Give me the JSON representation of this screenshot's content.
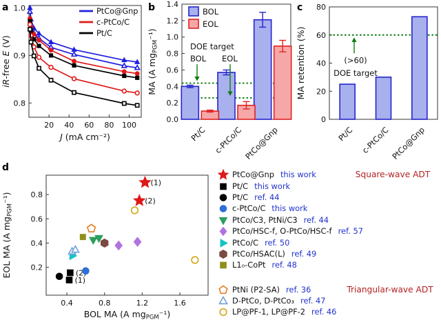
{
  "panels": {
    "a": {
      "label": "a"
    },
    "b": {
      "label": "b"
    },
    "c": {
      "label": "c"
    },
    "d": {
      "label": "d"
    }
  },
  "colors": {
    "blue_line": "#1f1fe0",
    "red_line": "#e01818",
    "black_line": "#000000",
    "bol_fill": "#a9b0ee",
    "bol_edge": "#2424cc",
    "eol_fill": "#f6a7a7",
    "eol_edge": "#e02222",
    "target_green": "#0a7c0a",
    "ref_blue": "#2233cc",
    "adt_title_red": "#b22222"
  },
  "chart_data": [
    {
      "id": "a",
      "type": "line",
      "xlabel": "*J* (mA cm⁻²)",
      "ylabel": "*iR*-free *E* (V)",
      "xlim": [
        0,
        112
      ],
      "ylim": [
        0.77,
        1.005
      ],
      "xticks": [
        20,
        40,
        60,
        80,
        100
      ],
      "xtick_labels": [
        "20",
        "40",
        "60",
        "80",
        "100"
      ],
      "yticks": [
        0.8,
        0.9,
        1.0
      ],
      "ytick_labels": [
        "0.8",
        "0.9",
        "1.0"
      ],
      "grid": false,
      "legend_position": "top-right",
      "legend": [
        {
          "label": "PtCo@Gnp",
          "color": "#1f1fe0"
        },
        {
          "label": "c-PtCo/C",
          "color": "#e01818"
        },
        {
          "label": "Pt/C",
          "color": "#000000"
        }
      ],
      "series": [
        {
          "name": "PtCo@Gnp BOL",
          "color": "#1f1fe0",
          "marker": "triangle",
          "filled": true,
          "x": [
            1,
            2,
            5,
            10,
            22,
            45,
            95,
            108
          ],
          "y": [
            1.0,
            0.976,
            0.957,
            0.946,
            0.928,
            0.912,
            0.89,
            0.886
          ]
        },
        {
          "name": "PtCo@Gnp EOL",
          "color": "#1f1fe0",
          "marker": "triangle",
          "filled": false,
          "x": [
            1,
            2,
            5,
            10,
            22,
            45,
            95,
            108
          ],
          "y": [
            0.992,
            0.966,
            0.946,
            0.936,
            0.917,
            0.902,
            0.878,
            0.874
          ]
        },
        {
          "name": "c-PtCo/C BOL",
          "color": "#e01818",
          "marker": "circle",
          "filled": true,
          "x": [
            1,
            2,
            5,
            10,
            22,
            45,
            95,
            108
          ],
          "y": [
            0.978,
            0.96,
            0.945,
            0.932,
            0.911,
            0.888,
            0.866,
            0.862
          ]
        },
        {
          "name": "Pt/C BOL",
          "color": "#000000",
          "marker": "square",
          "filled": true,
          "x": [
            1,
            2,
            5,
            10,
            22,
            45,
            95,
            108
          ],
          "y": [
            0.972,
            0.952,
            0.934,
            0.92,
            0.9,
            0.879,
            0.857,
            0.853
          ]
        },
        {
          "name": "c-PtCo/C EOL",
          "color": "#e01818",
          "marker": "circle",
          "filled": false,
          "x": [
            1,
            2,
            5,
            10,
            22,
            45,
            95,
            108
          ],
          "y": [
            0.965,
            0.942,
            0.918,
            0.896,
            0.875,
            0.851,
            0.825,
            0.821
          ]
        },
        {
          "name": "Pt/C EOL",
          "color": "#000000",
          "marker": "square",
          "filled": false,
          "x": [
            1,
            2,
            5,
            10,
            22,
            45,
            95,
            108
          ],
          "y": [
            0.955,
            0.928,
            0.899,
            0.873,
            0.848,
            0.822,
            0.799,
            0.795
          ]
        }
      ]
    },
    {
      "id": "b",
      "type": "bar",
      "ylabel": "MA (A mg~PGM~⁻¹)",
      "categories": [
        "Pt/C",
        "c-PtCo/C",
        "PtCo@Gnp"
      ],
      "ylim": [
        0,
        1.4
      ],
      "yticks": [
        0,
        0.2,
        0.4,
        0.6,
        0.8,
        1.0,
        1.2,
        1.4
      ],
      "ytick_labels": [
        "0.0",
        "0.2",
        "0.4",
        "0.6",
        "0.8",
        "1.0",
        "1.2",
        "1.4"
      ],
      "grid": false,
      "legend_position": "top-left",
      "series": [
        {
          "name": "BOL",
          "fill": "#a9b0ee",
          "edge": "#2424cc",
          "values": [
            0.4,
            0.57,
            1.21
          ],
          "errors": [
            0.015,
            0.03,
            0.09
          ]
        },
        {
          "name": "EOL",
          "fill": "#f6a7a7",
          "edge": "#e02222",
          "values": [
            0.1,
            0.17,
            0.89
          ],
          "errors": [
            0.012,
            0.045,
            0.07
          ]
        }
      ],
      "targets": {
        "color": "#0a7c0a",
        "label": "DOE target",
        "items": [
          {
            "name": "BOL",
            "value": 0.44
          },
          {
            "name": "EOL",
            "value": 0.26
          }
        ]
      }
    },
    {
      "id": "c",
      "type": "bar",
      "ylabel": "MA retention (%)",
      "categories": [
        "Pt/C",
        "c-PtCo/C",
        "PtCo@Gnp"
      ],
      "ylim": [
        0,
        80
      ],
      "yticks": [
        0,
        20,
        40,
        60,
        80
      ],
      "ytick_labels": [
        "0",
        "20",
        "40",
        "60",
        "80"
      ],
      "grid": false,
      "series": [
        {
          "name": "MA retention",
          "fill": "#a9b0ee",
          "edge": "#2424cc",
          "values": [
            25,
            30,
            73
          ]
        }
      ],
      "target": {
        "color": "#0a7c0a",
        "value": 60,
        "note": "(>60)",
        "label": "DOE target"
      }
    },
    {
      "id": "d",
      "type": "scatter",
      "xlabel": "BOL MA (A mg~PGM~⁻¹)",
      "ylabel": "EOL MA (A mg~PGM~⁻¹)",
      "xlim": [
        0.18,
        1.9
      ],
      "ylim": [
        -0.03,
        0.96
      ],
      "xticks": [
        0.4,
        0.8,
        1.2,
        1.6
      ],
      "xtick_labels": [
        "0.4",
        "0.8",
        "1.2",
        "1.6"
      ],
      "yticks": [
        0.2,
        0.4,
        0.6,
        0.8
      ],
      "ytick_labels": [
        "0.2",
        "0.4",
        "0.6",
        "0.8"
      ],
      "grid": false,
      "groups": [
        {
          "name": "PtCo@Gnp",
          "ref": "this work",
          "marker": "star",
          "color": "#e01818",
          "filled": true,
          "size": 8.5,
          "points": [
            {
              "x": 1.23,
              "y": 0.9,
              "label": "(1)"
            },
            {
              "x": 1.17,
              "y": 0.75,
              "label": "(2)"
            }
          ]
        },
        {
          "name": "Pt/C",
          "ref": "this work",
          "marker": "square",
          "color": "#000000",
          "filled": true,
          "size": 6,
          "points": [
            {
              "x": 0.425,
              "y": 0.095,
              "label": "(1)"
            },
            {
              "x": 0.435,
              "y": 0.155,
              "label": "(2)"
            }
          ]
        },
        {
          "name": "Pt/C",
          "ref": "ref. 44",
          "marker": "circle",
          "color": "#000000",
          "filled": true,
          "size": 6,
          "points": [
            {
              "x": 0.32,
              "y": 0.125
            }
          ]
        },
        {
          "name": "c-PtCo/C",
          "ref": "this work",
          "marker": "circle",
          "color": "#2e6fd8",
          "filled": true,
          "size": 6,
          "points": [
            {
              "x": 0.6,
              "y": 0.17
            }
          ]
        },
        {
          "name": "PtCo/C3, PtNi/C3",
          "ref": "ref. 44",
          "marker": "triangle-down",
          "color": "#2e9e5e",
          "filled": true,
          "size": 6,
          "points": [
            {
              "x": 0.68,
              "y": 0.425
            },
            {
              "x": 0.74,
              "y": 0.44
            }
          ]
        },
        {
          "name": "PtCo/HSC-f, O-PtCo/HSC-f",
          "ref": "ref. 57",
          "marker": "diamond",
          "color": "#b173e0",
          "filled": true,
          "size": 6.5,
          "points": [
            {
              "x": 0.95,
              "y": 0.38
            },
            {
              "x": 1.15,
              "y": 0.41
            }
          ]
        },
        {
          "name": "PtCo/C",
          "ref": "ref. 50",
          "marker": "triangle-right",
          "color": "#17c3c3",
          "filled": true,
          "size": 6,
          "points": [
            {
              "x": 0.46,
              "y": 0.295
            }
          ]
        },
        {
          "name": "PtCo/HSAC(L)",
          "ref": "ref. 49",
          "marker": "hexagon",
          "color": "#7b4a42",
          "filled": true,
          "size": 6,
          "points": [
            {
              "x": 0.8,
              "y": 0.4
            }
          ]
        },
        {
          "name": "L1₀-CoPt",
          "ref": "ref. 48",
          "marker": "square",
          "color": "#8f8f1c",
          "filled": true,
          "size": 5.5,
          "points": [
            {
              "x": 0.57,
              "y": 0.45
            }
          ]
        },
        {
          "name": "PtNi (P2-SA)",
          "ref": "ref. 36",
          "marker": "pentagon",
          "color": "#e87a1e",
          "filled": false,
          "size": 6,
          "points": [
            {
              "x": 0.66,
              "y": 0.52
            }
          ]
        },
        {
          "name": "D-PtCo, D-PtCo₃",
          "ref": "ref. 47",
          "marker": "triangle",
          "color": "#70a0d8",
          "filled": false,
          "size": 5.5,
          "points": [
            {
              "x": 0.455,
              "y": 0.33
            },
            {
              "x": 0.49,
              "y": 0.345
            }
          ]
        },
        {
          "name": "LP@PF-1, LP@PF-2",
          "ref": "ref. 46",
          "marker": "circle",
          "color": "#d3a512",
          "filled": false,
          "size": 6,
          "points": [
            {
              "x": 1.12,
              "y": 0.67
            },
            {
              "x": 1.76,
              "y": 0.26
            }
          ]
        }
      ],
      "legend_sections": [
        {
          "title": "Square-wave ADT",
          "first_row": 0,
          "last_row": 8
        },
        {
          "title": "Triangular-wave ADT",
          "first_row": 9,
          "last_row": 11
        }
      ]
    }
  ]
}
